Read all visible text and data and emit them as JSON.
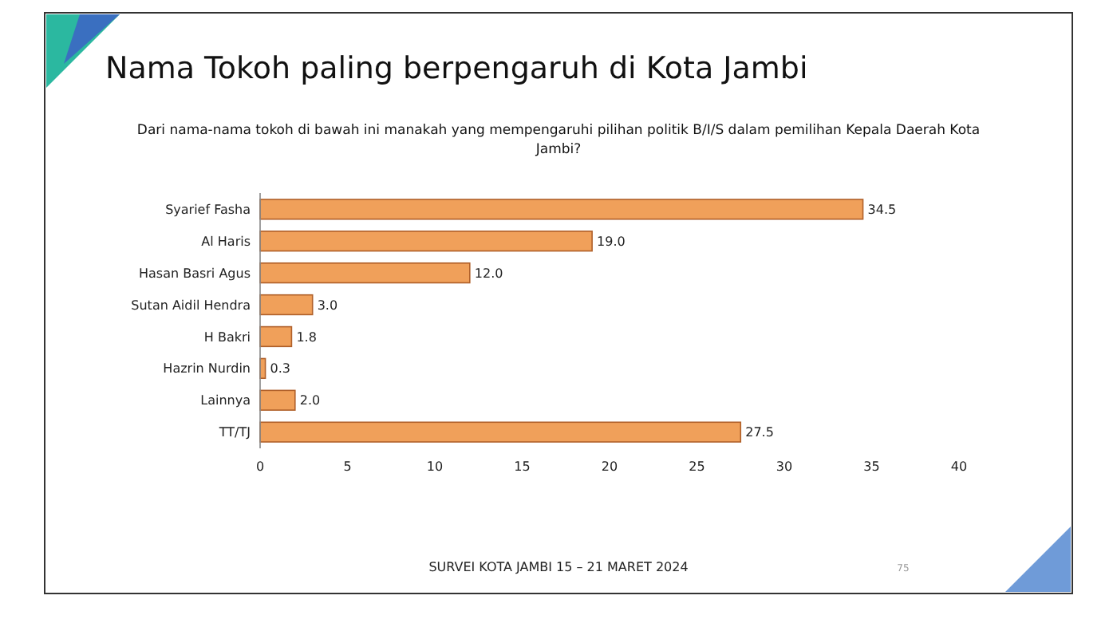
{
  "chart_data": {
    "type": "bar",
    "orientation": "horizontal",
    "title": "Nama Tokoh paling berpengaruh di Kota Jambi",
    "subtitle": "Dari nama-nama tokoh di bawah ini manakah yang mempengaruhi pilihan politik B/I/S dalam pemilihan Kepala Daerah Kota Jambi?",
    "categories": [
      "Syarief Fasha",
      "Al Haris",
      "Hasan Basri Agus",
      "Sutan Aidil Hendra",
      "H Bakri",
      "Hazrin Nurdin",
      "Lainnya",
      "TT/TJ"
    ],
    "values": [
      34.5,
      19.0,
      12.0,
      3.0,
      1.8,
      0.3,
      2.0,
      27.5
    ],
    "value_labels": [
      "34.5",
      "19.0",
      "12.0",
      "3.0",
      "1.8",
      "0.3",
      "2.0",
      "27.5"
    ],
    "color": "#f0a05a",
    "xlim": [
      0,
      40
    ],
    "xticks": [
      0,
      5,
      10,
      15,
      20,
      25,
      30,
      35,
      40
    ],
    "grid": false,
    "annotations": [
      "SURVEI KOTA JAMBI 15 – 21 MARET 2024",
      "75"
    ]
  }
}
